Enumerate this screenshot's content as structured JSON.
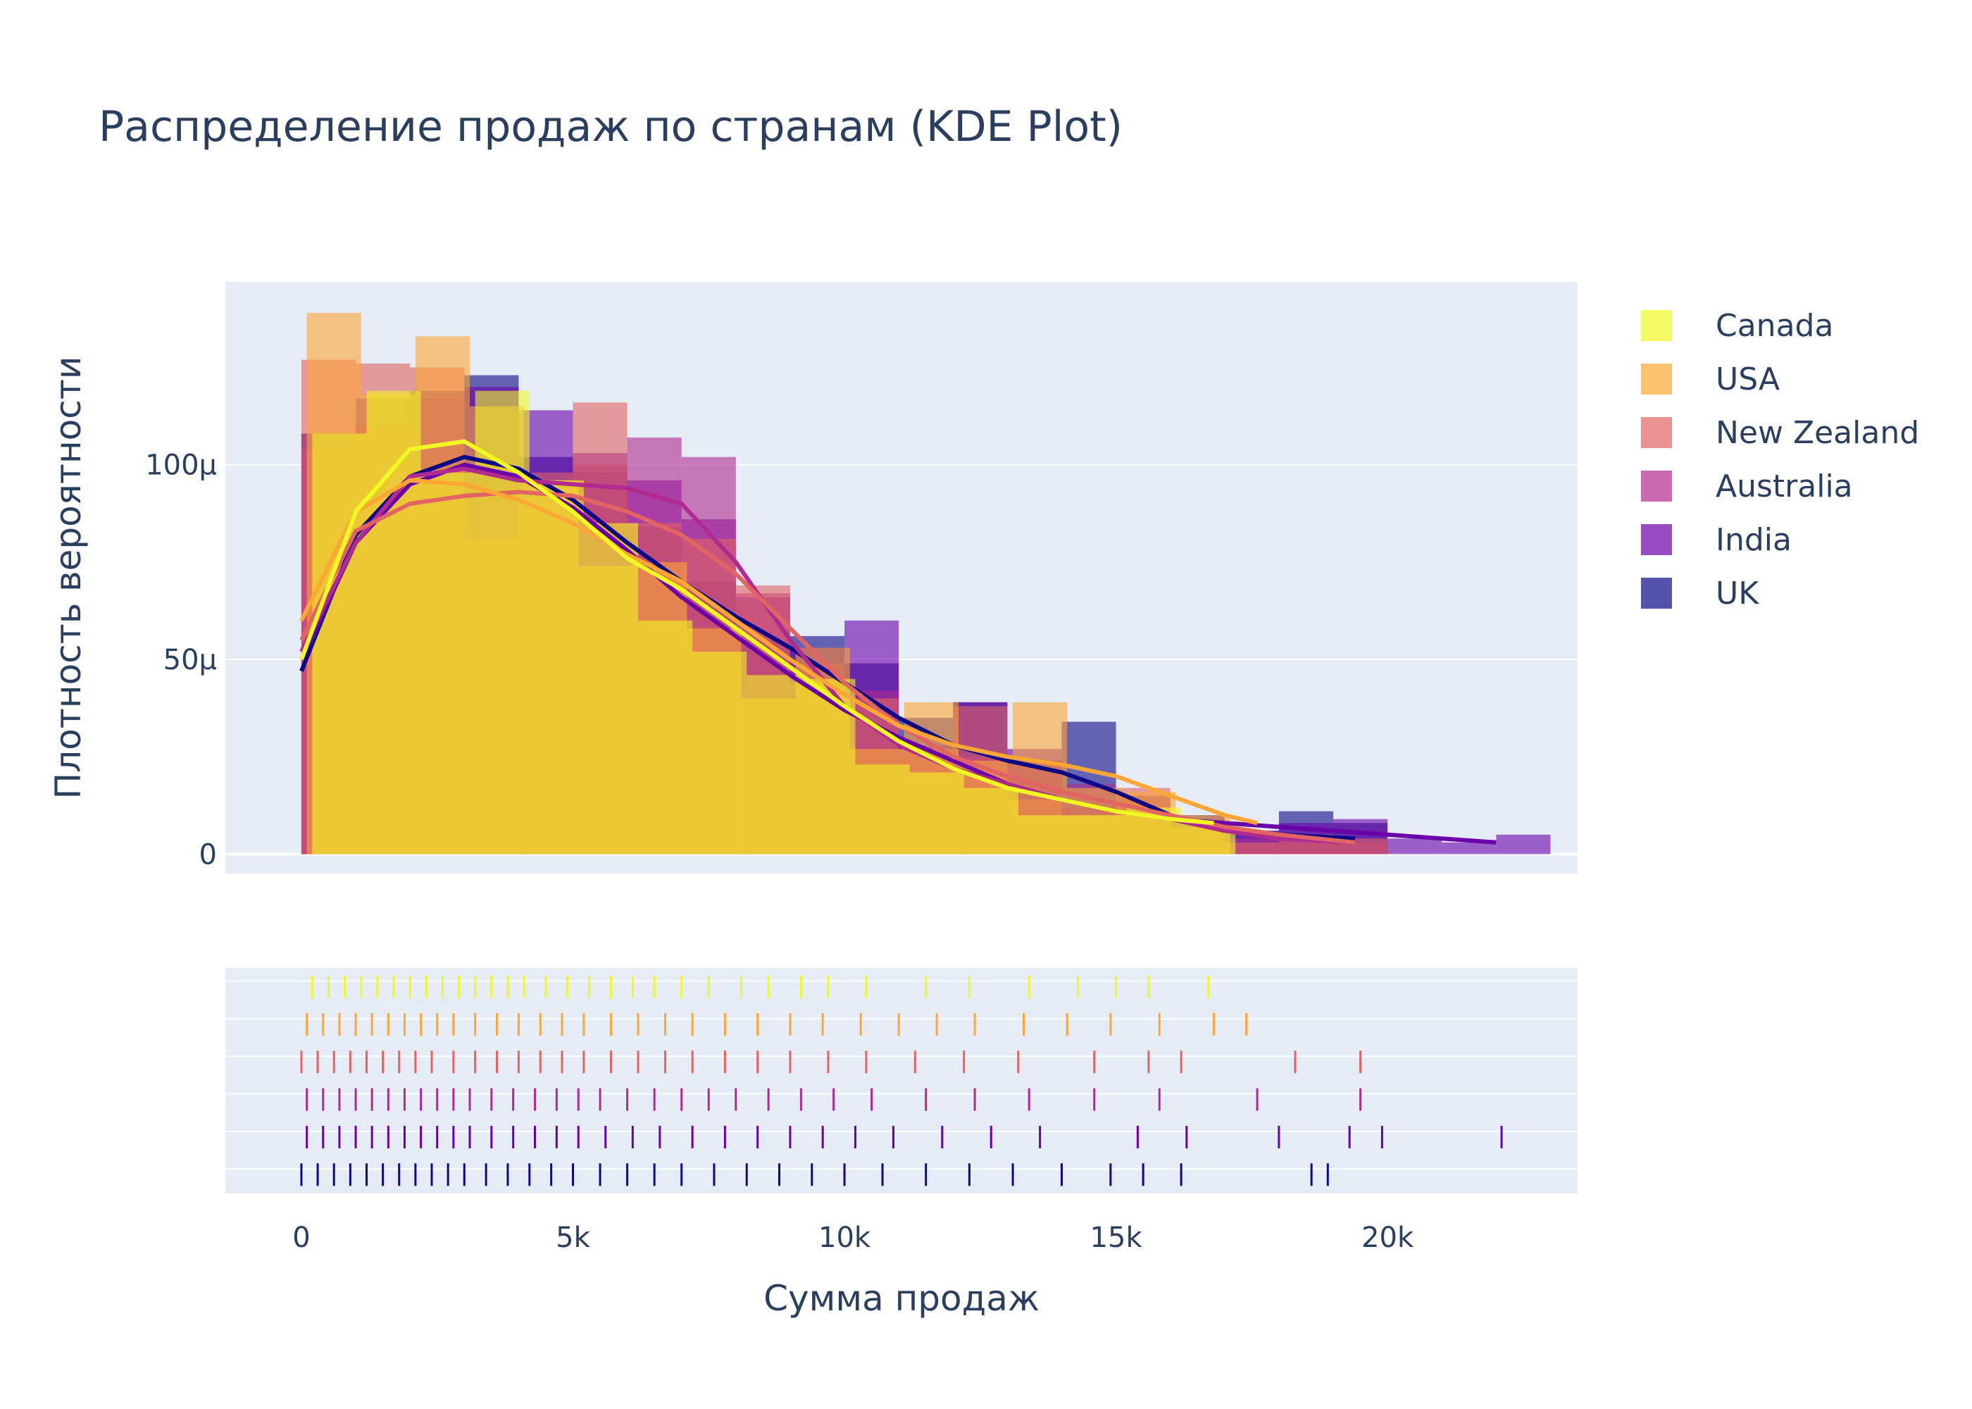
{
  "chart_data": {
    "type": "bar",
    "title": "Распределение продаж по странам (KDE Plot)",
    "xlabel": "Сумма продаж",
    "ylabel": "Плотность вероятности",
    "xlim": [
      -1400,
      23500
    ],
    "ylim": [
      -5,
      147
    ],
    "x_ticks": [
      {
        "value": 0,
        "label": "0"
      },
      {
        "value": 5000,
        "label": "5k"
      },
      {
        "value": 10000,
        "label": "10k"
      },
      {
        "value": 15000,
        "label": "15k"
      },
      {
        "value": 20000,
        "label": "20k"
      }
    ],
    "y_ticks": [
      {
        "value": 0,
        "label": "0"
      },
      {
        "value": 50,
        "label": "50μ"
      },
      {
        "value": 100,
        "label": "100μ"
      }
    ],
    "y_unit": "μ (1e-6)",
    "grid": true,
    "legend_position": "right",
    "bin_width": 1000,
    "series": [
      {
        "name": "Canada",
        "color": "#f0f921",
        "bin_start": 200,
        "hist": [
          108,
          119,
          98,
          119,
          96,
          85,
          60,
          52,
          46,
          45,
          23,
          21,
          17,
          10,
          10,
          12,
          8
        ],
        "kde_x": [
          0,
          1000,
          2000,
          3000,
          4000,
          5000,
          6000,
          7000,
          8000,
          9000,
          10000,
          11000,
          12000,
          13000,
          14000,
          15000,
          16000,
          16800
        ],
        "kde_y": [
          50,
          88,
          104,
          106,
          98,
          88,
          76,
          68,
          58,
          48,
          38,
          29,
          22,
          17,
          14,
          11,
          9,
          8
        ],
        "rug": [
          200,
          500,
          800,
          1100,
          1400,
          1700,
          2000,
          2300,
          2600,
          2900,
          3200,
          3500,
          3800,
          4100,
          4500,
          4900,
          5300,
          5700,
          6100,
          6500,
          7000,
          7500,
          8100,
          8600,
          9200,
          9700,
          10400,
          11500,
          12300,
          13400,
          14300,
          15000,
          15600,
          16700
        ]
      },
      {
        "name": "USA",
        "color": "#fca636",
        "bin_start": 100,
        "hist": [
          139,
          118,
          133,
          115,
          96,
          74,
          75,
          58,
          40,
          53,
          27,
          39,
          24,
          39,
          17,
          16,
          10
        ],
        "kde_x": [
          0,
          1000,
          2000,
          3000,
          4000,
          5000,
          6000,
          7000,
          8000,
          9000,
          10000,
          11000,
          12000,
          13000,
          14000,
          15000,
          16000,
          17000,
          17600
        ],
        "kde_y": [
          60,
          88,
          96,
          95,
          91,
          85,
          77,
          70,
          60,
          50,
          41,
          33,
          28,
          25,
          23,
          20,
          15,
          10,
          8
        ],
        "rug": [
          100,
          400,
          700,
          1000,
          1300,
          1600,
          1900,
          2200,
          2500,
          2800,
          3200,
          3600,
          4000,
          4400,
          4800,
          5200,
          5700,
          6200,
          6700,
          7200,
          7800,
          8400,
          9000,
          9600,
          10300,
          11000,
          11700,
          12400,
          13300,
          14100,
          14900,
          15800,
          16800,
          17400
        ]
      },
      {
        "name": "New Zealand",
        "color": "#e16462",
        "bin_start": 0,
        "hist": [
          127,
          126,
          125,
          81,
          98,
          116,
          85,
          81,
          69,
          44,
          40,
          27,
          38,
          14,
          10,
          17,
          7,
          3,
          5,
          4
        ],
        "kde_x": [
          0,
          1000,
          2000,
          3000,
          4000,
          5000,
          6000,
          7000,
          8000,
          9000,
          10000,
          11000,
          12000,
          13000,
          14000,
          15000,
          16000,
          17000,
          18000,
          19400
        ],
        "kde_y": [
          55,
          83,
          90,
          92,
          93,
          92,
          88,
          82,
          72,
          58,
          44,
          33,
          25,
          20,
          16,
          13,
          10,
          7,
          5,
          3
        ],
        "rug": [
          0,
          300,
          600,
          900,
          1200,
          1500,
          1800,
          2100,
          2400,
          2800,
          3200,
          3600,
          4000,
          4400,
          4800,
          5200,
          5700,
          6200,
          6700,
          7200,
          7800,
          8400,
          9000,
          9700,
          10400,
          11300,
          12200,
          13200,
          14600,
          15600,
          16200,
          18300,
          19500
        ]
      },
      {
        "name": "Australia",
        "color": "#b12a90",
        "bin_start": 0,
        "hist": [
          104,
          110,
          95,
          95,
          94,
          100,
          107,
          102,
          67,
          49,
          42,
          26,
          25,
          23,
          18,
          14,
          7,
          4,
          3,
          3
        ],
        "kde_x": [
          0,
          1000,
          2000,
          3000,
          4000,
          5000,
          6000,
          7000,
          8000,
          9000,
          10000,
          11000,
          12000,
          13000,
          14000,
          15000,
          16000,
          17000,
          18000,
          19400
        ],
        "kde_y": [
          52,
          80,
          97,
          99,
          96,
          95,
          94,
          90,
          75,
          55,
          38,
          28,
          22,
          18,
          14,
          11,
          9,
          6,
          4,
          3
        ],
        "rug": [
          100,
          400,
          700,
          1000,
          1300,
          1600,
          1900,
          2200,
          2500,
          2800,
          3100,
          3500,
          3900,
          4300,
          4700,
          5100,
          5500,
          6000,
          6500,
          7000,
          7500,
          8000,
          8600,
          9200,
          9800,
          10500,
          11500,
          12400,
          13400,
          14600,
          15800,
          17600,
          19500
        ]
      },
      {
        "name": "India",
        "color": "#6a00a8",
        "bin_start": 0,
        "hist": [
          108,
          110,
          117,
          120,
          114,
          103,
          96,
          86,
          66,
          53,
          60,
          28,
          39,
          27,
          12,
          10,
          9,
          6,
          8,
          9,
          4,
          3,
          5
        ],
        "kde_x": [
          0,
          1000,
          2000,
          3000,
          4000,
          5000,
          6000,
          7000,
          8000,
          9000,
          10000,
          11000,
          12000,
          13000,
          14000,
          15000,
          16000,
          17000,
          18000,
          19000,
          20000,
          21000,
          22000
        ],
        "kde_y": [
          50,
          80,
          95,
          100,
          97,
          89,
          78,
          66,
          56,
          46,
          37,
          30,
          24,
          18,
          14,
          11,
          9,
          8,
          7,
          6,
          5,
          4,
          3
        ],
        "rug": [
          100,
          400,
          700,
          1000,
          1300,
          1600,
          1900,
          2200,
          2500,
          2800,
          3100,
          3500,
          3900,
          4300,
          4700,
          5100,
          5600,
          6100,
          6600,
          7200,
          7800,
          8400,
          9000,
          9600,
          10200,
          10900,
          11800,
          12700,
          13600,
          15400,
          16300,
          18000,
          19300,
          19900,
          22100
        ]
      },
      {
        "name": "UK",
        "color": "#0d0887",
        "bin_start": 0,
        "hist": [
          108,
          117,
          119,
          123,
          102,
          98,
          84,
          70,
          55,
          56,
          49,
          35,
          39,
          24,
          34,
          15,
          10,
          6,
          11,
          8
        ],
        "kde_x": [
          0,
          1000,
          2000,
          3000,
          4000,
          5000,
          6000,
          7000,
          8000,
          9000,
          10000,
          11000,
          12000,
          13000,
          14000,
          15000,
          16000,
          17000,
          18000,
          19400
        ],
        "kde_y": [
          47,
          82,
          97,
          102,
          99,
          91,
          80,
          70,
          61,
          53,
          44,
          35,
          28,
          24,
          21,
          16,
          10,
          6,
          5,
          4
        ],
        "rug": [
          0,
          300,
          600,
          900,
          1200,
          1500,
          1800,
          2100,
          2400,
          2700,
          3000,
          3400,
          3800,
          4200,
          4600,
          5000,
          5500,
          6000,
          6500,
          7000,
          7600,
          8200,
          8800,
          9400,
          10000,
          10700,
          11500,
          12300,
          13100,
          14000,
          14900,
          15500,
          16200,
          18600,
          18900
        ]
      }
    ]
  }
}
